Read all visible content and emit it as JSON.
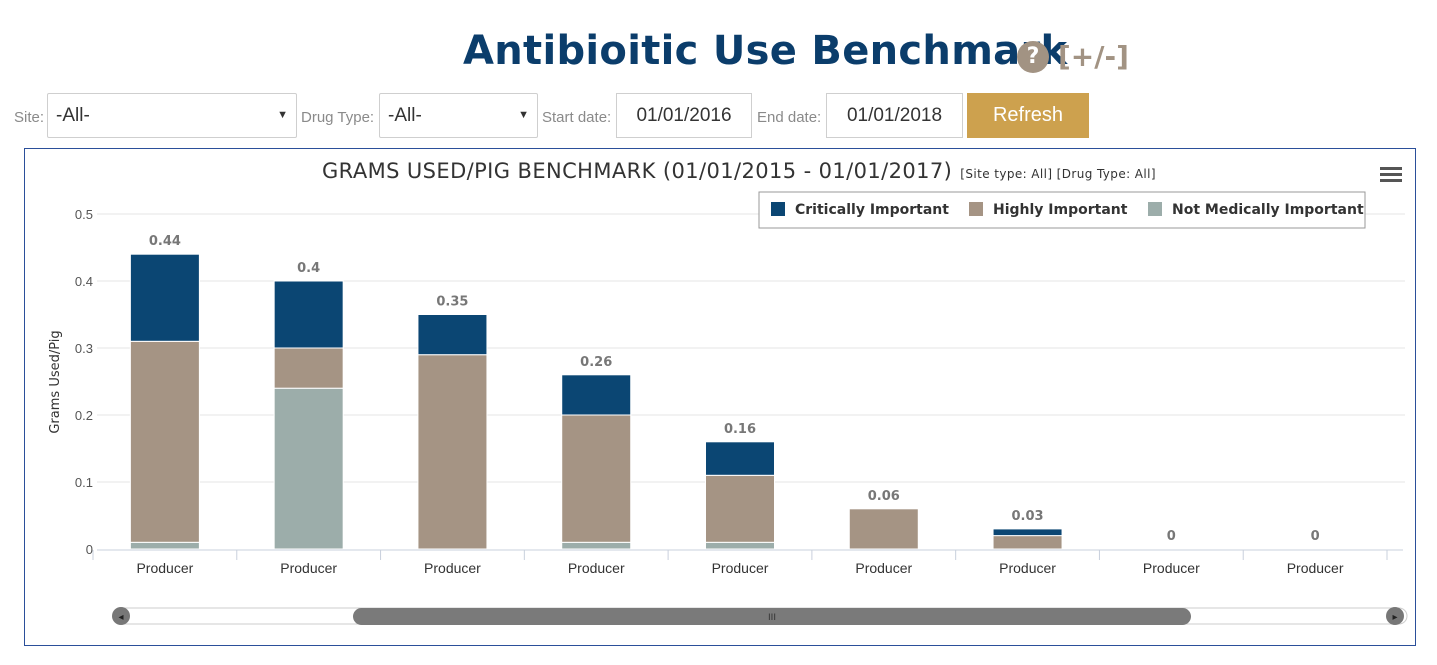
{
  "header": {
    "title": "Antibioitic Use Benchmark",
    "help_icon": "?",
    "toggle_label": "[+/-]"
  },
  "filters": {
    "site_label": "Site:",
    "site_value": "-All-",
    "drug_type_label": "Drug Type:",
    "drug_type_value": "-All-",
    "start_date_label": "Start date:",
    "start_date_value": "01/01/2016",
    "end_date_label": "End date:",
    "end_date_value": "01/01/2018",
    "refresh_label": "Refresh",
    "caret_icon": "▼"
  },
  "colors": {
    "title": "#0b3d6b",
    "accent_gold": "#cda14e",
    "help_taupe": "#a29383",
    "frame_border": "#2b4f9a"
  },
  "chart_data": {
    "type": "bar",
    "stacked": true,
    "title": "GRAMS USED/PIG BENCHMARK (01/01/2015 - 01/01/2017)",
    "subtitle": "[Site type: All] [Drug Type: All]",
    "ylabel": "Grams Used/Pig",
    "xlabel": "",
    "ylim": [
      0,
      0.5
    ],
    "yticks": [
      0,
      0.1,
      0.2,
      0.3,
      0.4,
      0.5
    ],
    "grid": true,
    "legend_position": "top-right",
    "categories": [
      "Producer",
      "Producer",
      "Producer",
      "Producer",
      "Producer",
      "Producer",
      "Producer",
      "Producer",
      "Producer"
    ],
    "series": [
      {
        "name": "Not Medically Important",
        "color": "#9cadaa",
        "values": [
          0.01,
          0.24,
          0,
          0.01,
          0.01,
          0,
          0,
          0,
          0
        ]
      },
      {
        "name": "Highly Important",
        "color": "#a59484",
        "values": [
          0.3,
          0.06,
          0.29,
          0.19,
          0.1,
          0.06,
          0.02,
          0,
          0
        ]
      },
      {
        "name": "Critically Important",
        "color": "#0b4673",
        "values": [
          0.13,
          0.1,
          0.06,
          0.06,
          0.05,
          0,
          0.01,
          0,
          0
        ]
      }
    ],
    "legend_order": [
      "Critically Important",
      "Highly Important",
      "Not Medically Important"
    ],
    "totals": [
      "0.44",
      "0.4",
      "0.35",
      "0.26",
      "0.16",
      "0.06",
      "0.03",
      "0",
      "0"
    ],
    "menu_icon": "hamburger-menu-icon",
    "scrollbar": {
      "grip_label": "III",
      "left_arrow": "◂",
      "right_arrow": "▸"
    }
  }
}
